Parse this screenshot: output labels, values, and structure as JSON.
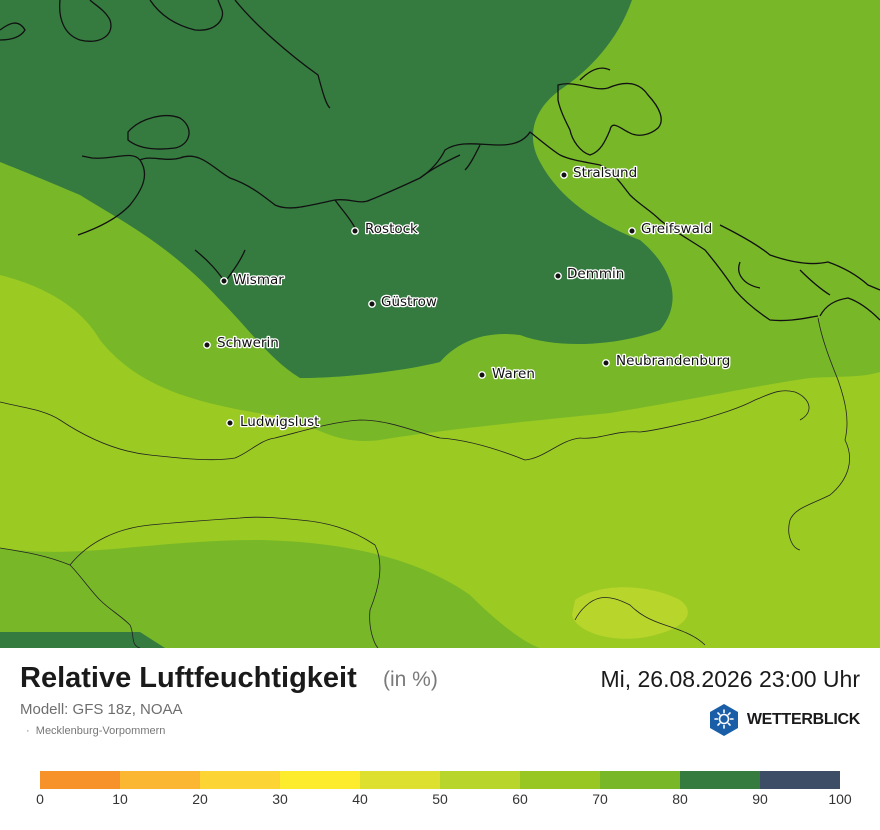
{
  "map": {
    "cities": [
      {
        "name": "Stralsund"
      },
      {
        "name": "Rostock"
      },
      {
        "name": "Greifswald"
      },
      {
        "name": "Wismar"
      },
      {
        "name": "Demmin"
      },
      {
        "name": "Güstrow"
      },
      {
        "name": "Schwerin"
      },
      {
        "name": "Neubrandenburg"
      },
      {
        "name": "Waren"
      },
      {
        "name": "Ludwigslust"
      }
    ]
  },
  "header": {
    "title": "Relative Luftfeuchtigkeit",
    "unit": "(in %)",
    "datetime": "Mi, 26.08.2026 23:00 Uhr",
    "model": "Modell: GFS 18z, NOAA",
    "region": "Mecklenburg-Vorpommern"
  },
  "brand": {
    "name": "WETTERBLICK",
    "color": "#1a5ea8"
  },
  "legend": {
    "ticks": [
      "0",
      "10",
      "20",
      "30",
      "40",
      "50",
      "60",
      "70",
      "80",
      "90",
      "100"
    ],
    "colors": [
      "#f7922a",
      "#fbb731",
      "#fcd434",
      "#fdeb2e",
      "#dde02f",
      "#b8d52c",
      "#98c623",
      "#78b828",
      "#357b40",
      "#3d4d66"
    ]
  }
}
